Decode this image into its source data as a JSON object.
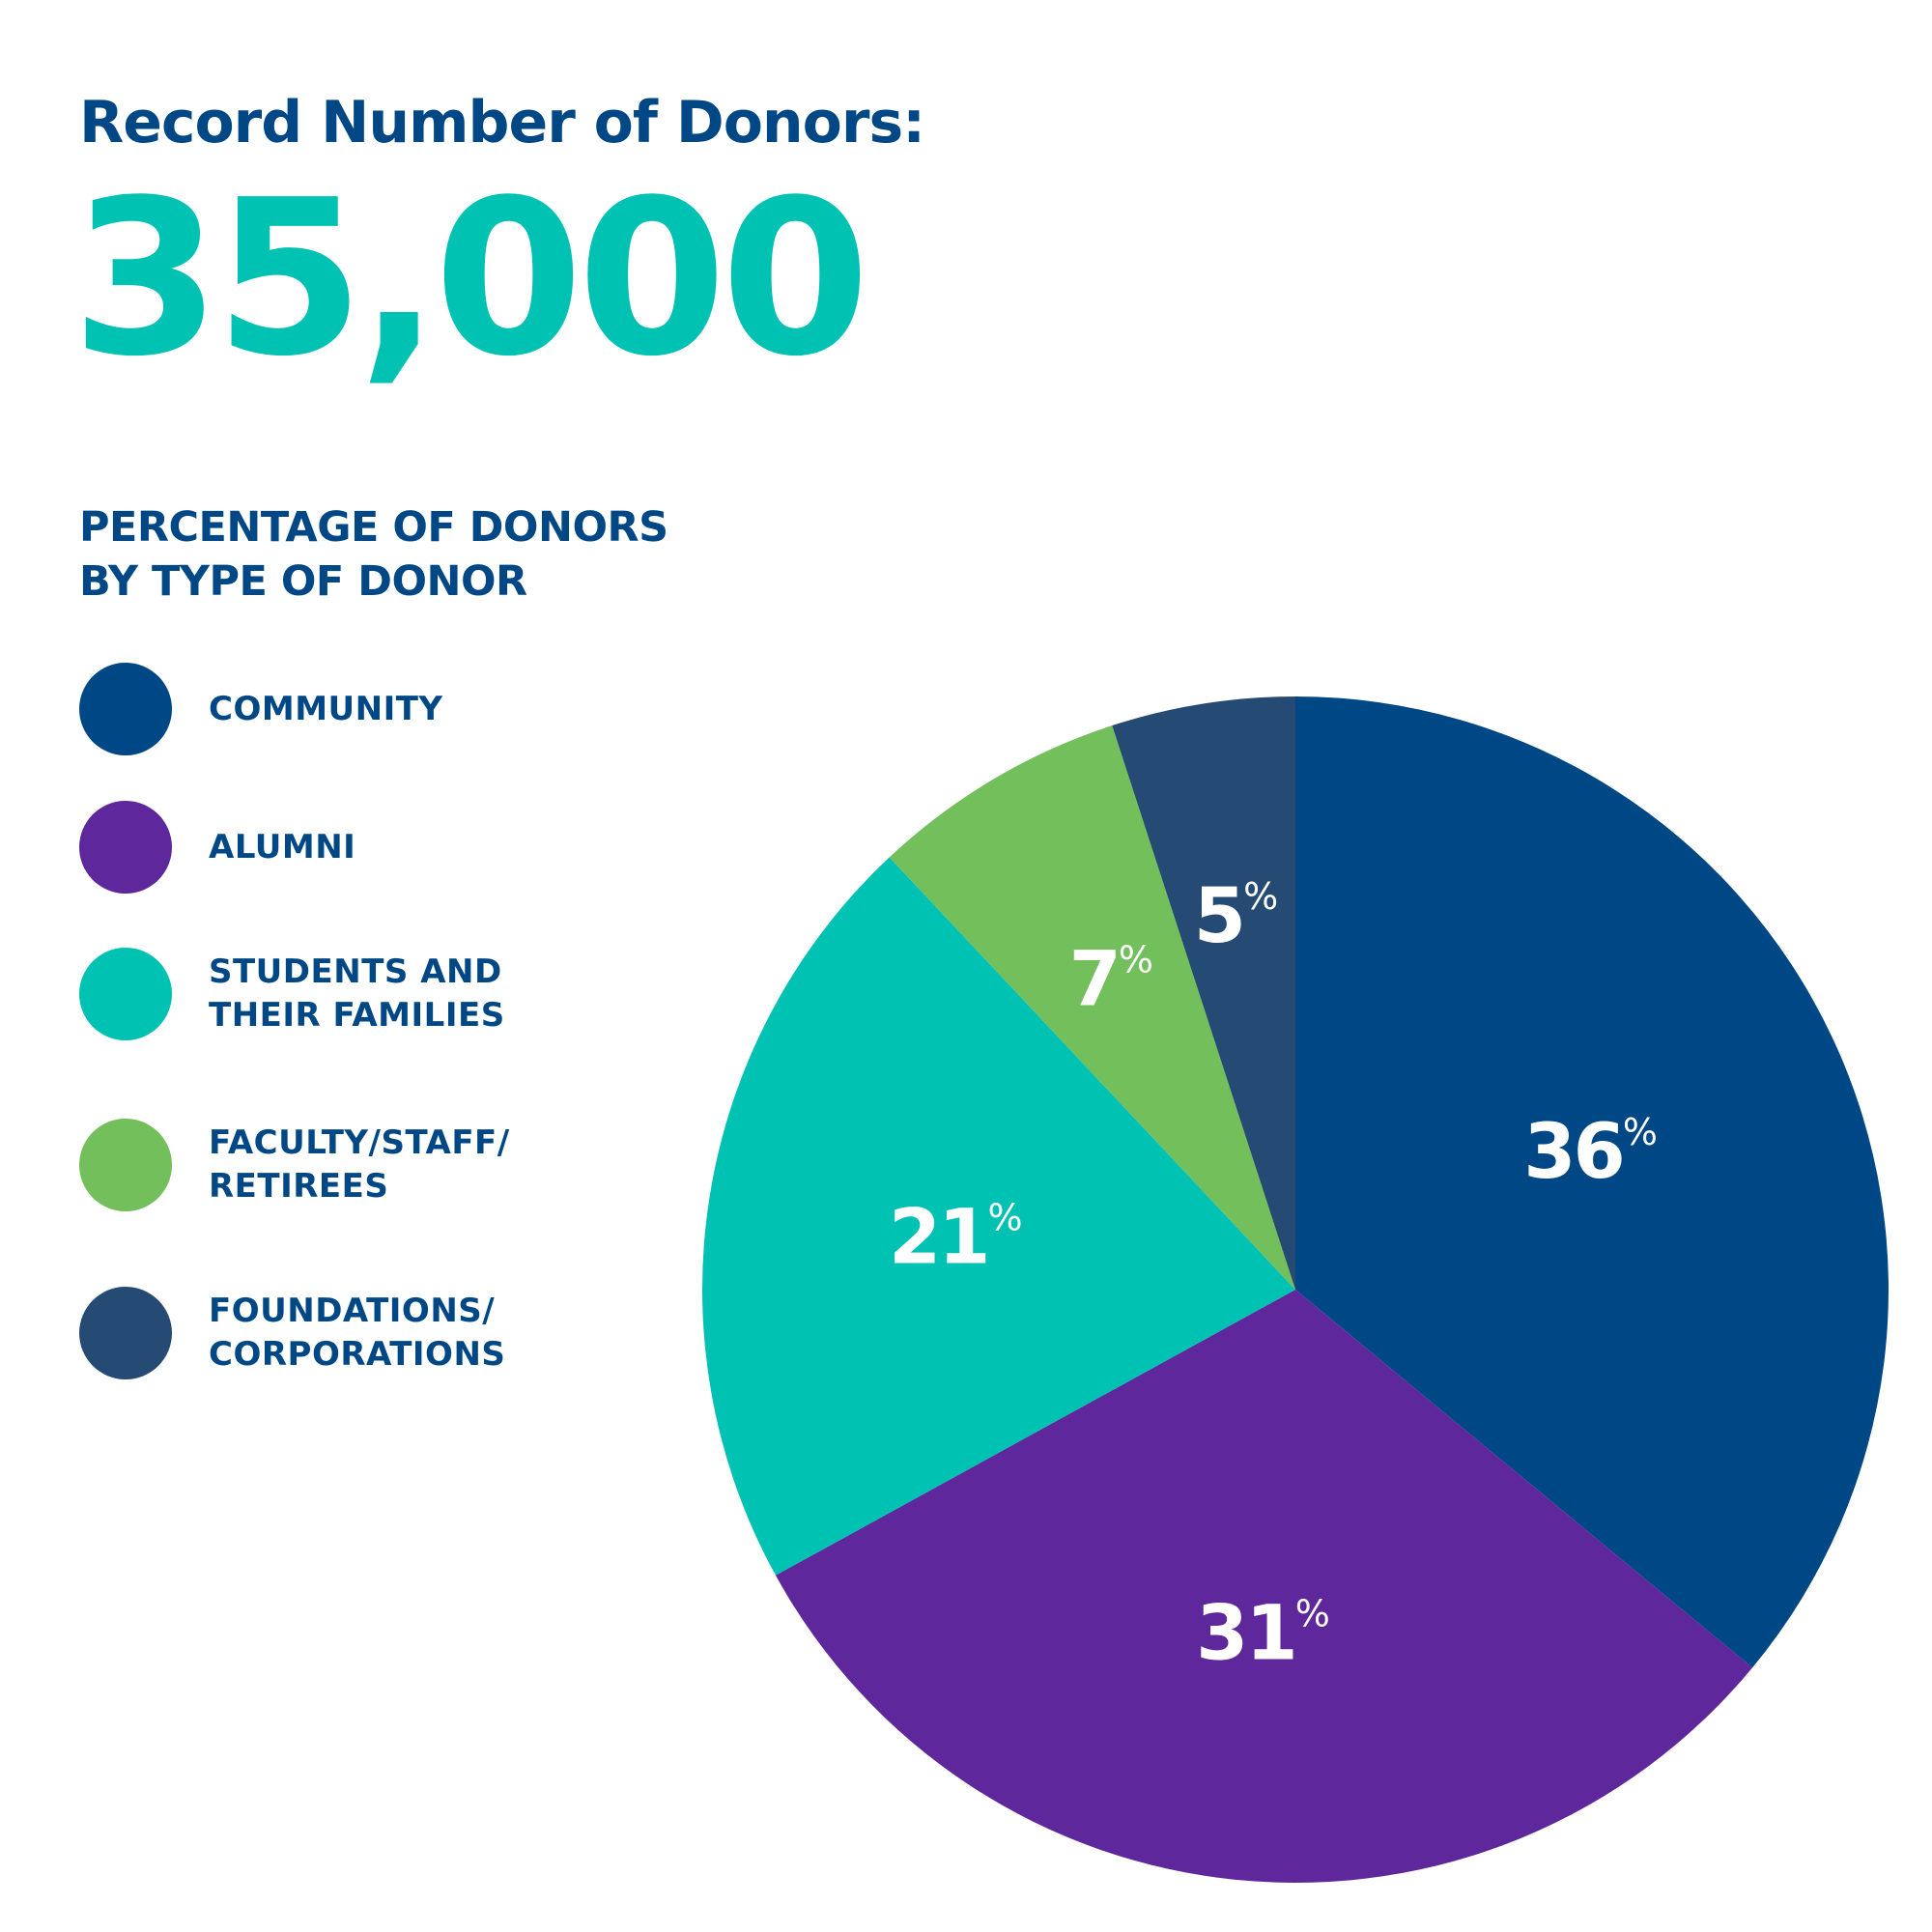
{
  "headline": "Record Number of Donors:",
  "total_donors": "35,000",
  "colors": {
    "community": "#004785",
    "alumni": "#5e279c",
    "students": "#00c2b2",
    "faculty": "#73bf5b",
    "foundations": "#254b74"
  },
  "chart_data": {
    "type": "pie",
    "title": [
      "PERCENTAGE OF DONORS",
      "BY TYPE OF DONOR"
    ],
    "legend_position": "left",
    "slices": [
      {
        "key": "community",
        "label": [
          "COMMUNITY"
        ],
        "value": 36,
        "value_text": "36",
        "unit": "%",
        "color": "#004785"
      },
      {
        "key": "alumni",
        "label": [
          "ALUMNI"
        ],
        "value": 31,
        "value_text": "31",
        "unit": "%",
        "color": "#5e279c"
      },
      {
        "key": "students",
        "label": [
          "STUDENTS AND",
          "THEIR FAMILIES"
        ],
        "value": 21,
        "value_text": "21",
        "unit": "%",
        "color": "#00c2b2"
      },
      {
        "key": "faculty",
        "label": [
          "FACULTY/STAFF/",
          "RETIREES"
        ],
        "value": 7,
        "value_text": "7",
        "unit": "%",
        "color": "#73bf5b"
      },
      {
        "key": "foundations",
        "label": [
          "FOUNDATIONS/",
          "CORPORATIONS"
        ],
        "value": 5,
        "value_text": "5",
        "unit": "%",
        "color": "#254b74"
      }
    ]
  }
}
